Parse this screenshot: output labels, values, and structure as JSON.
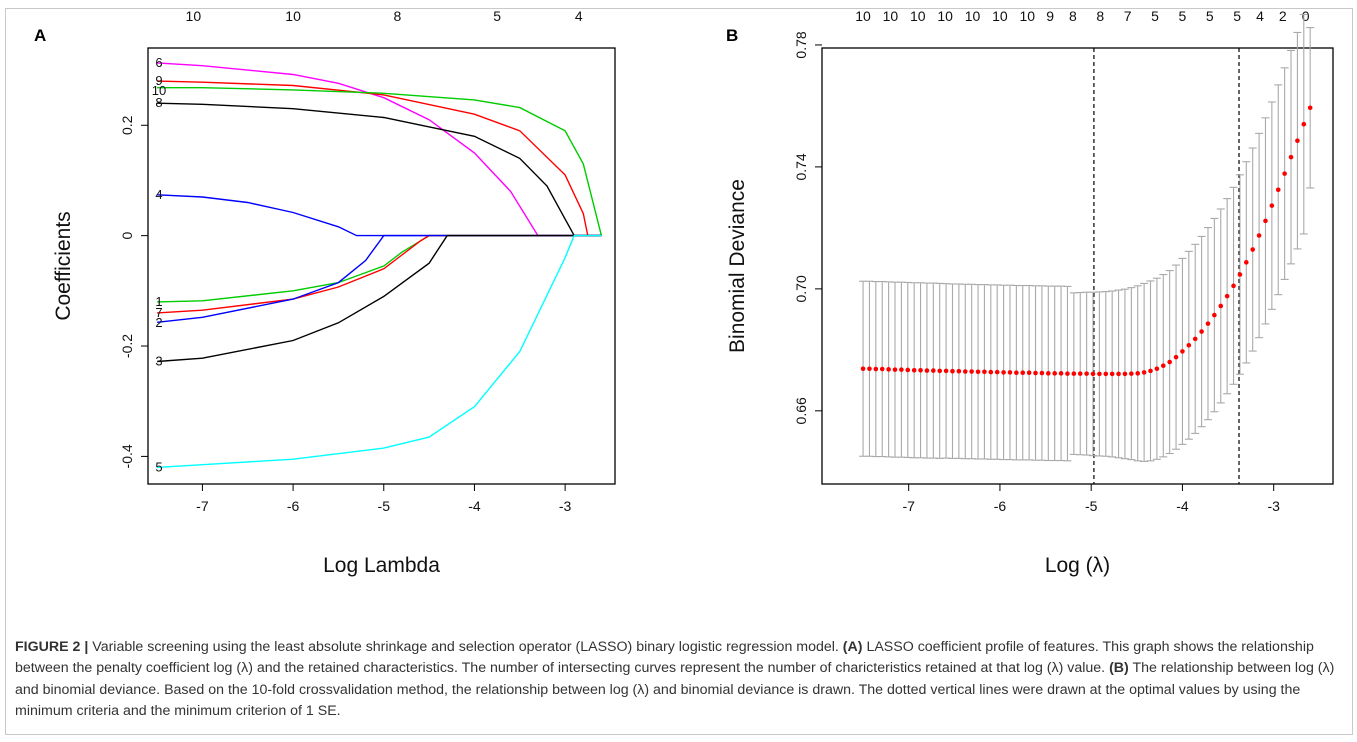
{
  "caption": {
    "label": "FIGURE 2 |",
    "parts": [
      {
        "t": " Variable screening using the least absolute shrinkage and selection operator (LASSO) binary logistic regression model. ",
        "b": false
      },
      {
        "t": "(A)",
        "b": true
      },
      {
        "t": " LASSO coefficient profile of features. This graph shows the relationship between the penalty coefficient log (λ) and the retained characteristics. The number of intersecting curves represent the number of charicteristics retained at that log (λ) value. ",
        "b": false
      },
      {
        "t": "(B)",
        "b": true
      },
      {
        "t": " The relationship between log (λ) and binomial deviance. Based on the 10-fold crossvalidation method, the relationship between log (λ) and binomial deviance is drawn. The dotted vertical lines were drawn at the optimal values by using the minimum criteria and the minimum criterion of 1 SE.",
        "b": false
      }
    ]
  },
  "chart_data": [
    {
      "panel": "A",
      "type": "line",
      "xlabel": "Log Lambda",
      "ylabel": "Coefficients",
      "xlim": [
        -7.6,
        -2.45
      ],
      "ylim": [
        -0.45,
        0.34
      ],
      "x_ticks": [
        -7,
        -6,
        -5,
        -4,
        -3
      ],
      "y_ticks": [
        -0.4,
        -0.2,
        0,
        0.2
      ],
      "y_tick_labels": [
        "-0.4",
        "-0.2",
        "0",
        "0.2"
      ],
      "top_axis": {
        "x": [
          -7.1,
          -6.0,
          -4.85,
          -3.75,
          -2.85
        ],
        "labels": [
          "10",
          "10",
          "8",
          "5",
          "4"
        ]
      },
      "series": [
        {
          "name": "6",
          "color": "#ff00ff",
          "x": [
            -7.5,
            -7.0,
            -6.0,
            -5.5,
            -5.0,
            -4.5,
            -4.0,
            -3.6,
            -3.3,
            -3.3,
            -2.6
          ],
          "y": [
            0.313,
            0.308,
            0.292,
            0.276,
            0.25,
            0.21,
            0.15,
            0.08,
            0.0,
            0.0,
            0.0
          ]
        },
        {
          "name": "9",
          "color": "#ff0000",
          "x": [
            -7.5,
            -7.0,
            -6.0,
            -5.0,
            -4.0,
            -3.5,
            -3.0,
            -2.8,
            -2.75,
            -2.6
          ],
          "y": [
            0.28,
            0.278,
            0.272,
            0.255,
            0.22,
            0.19,
            0.11,
            0.04,
            0.0,
            0.0
          ]
        },
        {
          "name": "10",
          "color": "#00cc00",
          "x": [
            -7.5,
            -7.0,
            -6.0,
            -5.0,
            -4.0,
            -3.5,
            -3.0,
            -2.8,
            -2.6
          ],
          "y": [
            0.268,
            0.268,
            0.264,
            0.258,
            0.246,
            0.232,
            0.19,
            0.13,
            0.0
          ]
        },
        {
          "name": "8",
          "color": "#000000",
          "x": [
            -7.5,
            -7.0,
            -6.0,
            -5.0,
            -4.0,
            -3.5,
            -3.2,
            -3.0,
            -2.9,
            -2.6
          ],
          "y": [
            0.24,
            0.238,
            0.23,
            0.214,
            0.18,
            0.14,
            0.09,
            0.03,
            0.0,
            0.0
          ]
        },
        {
          "name": "4",
          "color": "#0000ff",
          "x": [
            -7.5,
            -7.0,
            -6.5,
            -6.0,
            -5.5,
            -5.3,
            -2.6
          ],
          "y": [
            0.074,
            0.07,
            0.06,
            0.042,
            0.016,
            0.0,
            0.0
          ]
        },
        {
          "name": "1",
          "color": "#00cc00",
          "x": [
            -7.5,
            -7.0,
            -6.0,
            -5.5,
            -5.0,
            -4.8,
            -4.6,
            -4.5,
            -2.6
          ],
          "y": [
            -0.12,
            -0.118,
            -0.1,
            -0.085,
            -0.055,
            -0.03,
            -0.01,
            0.0,
            0.0
          ]
        },
        {
          "name": "7",
          "color": "#ff0000",
          "x": [
            -7.5,
            -7.0,
            -6.0,
            -5.5,
            -5.0,
            -4.8,
            -4.6,
            -4.5,
            -2.6
          ],
          "y": [
            -0.14,
            -0.135,
            -0.115,
            -0.093,
            -0.06,
            -0.035,
            -0.01,
            0.0,
            0.0
          ]
        },
        {
          "name": "2",
          "color": "#0000ff",
          "x": [
            -7.5,
            -7.0,
            -6.0,
            -5.5,
            -5.2,
            -5.0,
            -2.6
          ],
          "y": [
            -0.157,
            -0.148,
            -0.115,
            -0.085,
            -0.045,
            0.0,
            0.0
          ]
        },
        {
          "name": "3",
          "color": "#000000",
          "x": [
            -7.5,
            -7.0,
            -6.0,
            -5.5,
            -5.0,
            -4.5,
            -4.3,
            -2.6
          ],
          "y": [
            -0.228,
            -0.222,
            -0.19,
            -0.158,
            -0.11,
            -0.05,
            0.0,
            0.0
          ]
        },
        {
          "name": "5",
          "color": "#00ffff",
          "x": [
            -7.5,
            -7.0,
            -6.0,
            -5.0,
            -4.5,
            -4.0,
            -3.5,
            -3.0,
            -2.9,
            -2.6
          ],
          "y": [
            -0.42,
            -0.415,
            -0.405,
            -0.385,
            -0.365,
            -0.31,
            -0.21,
            -0.04,
            0.0,
            0.0
          ]
        }
      ]
    },
    {
      "panel": "B",
      "type": "scatter",
      "xlabel": "Log (λ)",
      "ylabel": "Binomial Deviance",
      "xlim": [
        -7.95,
        -2.35
      ],
      "ylim": [
        0.636,
        0.779
      ],
      "x_ticks": [
        -7,
        -6,
        -5,
        -4,
        -3
      ],
      "y_ticks": [
        0.66,
        0.7,
        0.74,
        0.78
      ],
      "y_tick_labels": [
        "0.66",
        "0.70",
        "0.74",
        "0.78"
      ],
      "top_axis": {
        "x": [
          -7.5,
          -7.2,
          -6.9,
          -6.6,
          -6.3,
          -6.0,
          -5.7,
          -5.45,
          -5.2,
          -4.9,
          -4.6,
          -4.3,
          -4.0,
          -3.7,
          -3.4,
          -3.15,
          -2.9,
          -2.65
        ],
        "labels": [
          "10",
          "10",
          "10",
          "10",
          "10",
          "10",
          "10",
          "9",
          "8",
          "8",
          "7",
          "5",
          "5",
          "5",
          "5",
          "4",
          "2",
          "0"
        ]
      },
      "vlines": [
        -4.97,
        -3.38
      ],
      "points": {
        "color": "#ff0000",
        "x": [
          -7.5,
          -7.43,
          -7.36,
          -7.29,
          -7.22,
          -7.15,
          -7.08,
          -7.01,
          -6.94,
          -6.87,
          -6.8,
          -6.73,
          -6.66,
          -6.59,
          -6.52,
          -6.45,
          -6.38,
          -6.31,
          -6.24,
          -6.17,
          -6.1,
          -6.03,
          -5.96,
          -5.89,
          -5.82,
          -5.75,
          -5.68,
          -5.61,
          -5.54,
          -5.47,
          -5.4,
          -5.33,
          -5.26,
          -5.19,
          -5.12,
          -5.05,
          -4.98,
          -4.91,
          -4.84,
          -4.77,
          -4.7,
          -4.63,
          -4.56,
          -4.49,
          -4.42,
          -4.35,
          -4.28,
          -4.21,
          -4.14,
          -4.07,
          -4.0,
          -3.93,
          -3.86,
          -3.79,
          -3.72,
          -3.65,
          -3.58,
          -3.51,
          -3.44,
          -3.37,
          -3.3,
          -3.23,
          -3.16,
          -3.09,
          -3.02,
          -2.95,
          -2.88,
          -2.81,
          -2.74,
          -2.67,
          -2.6
        ],
        "y": [
          0.6738,
          0.6738,
          0.6737,
          0.6737,
          0.6736,
          0.6735,
          0.6735,
          0.6734,
          0.6733,
          0.6733,
          0.6732,
          0.6732,
          0.6731,
          0.6731,
          0.673,
          0.673,
          0.6729,
          0.6729,
          0.6728,
          0.6728,
          0.6727,
          0.6727,
          0.6726,
          0.6726,
          0.6725,
          0.6725,
          0.6725,
          0.6724,
          0.6724,
          0.6723,
          0.6723,
          0.6723,
          0.6722,
          0.6722,
          0.6722,
          0.6722,
          0.6721,
          0.6721,
          0.6721,
          0.6721,
          0.6721,
          0.6721,
          0.6722,
          0.6723,
          0.6726,
          0.6731,
          0.6738,
          0.6748,
          0.676,
          0.6776,
          0.6795,
          0.6815,
          0.6836,
          0.686,
          0.6886,
          0.6914,
          0.6944,
          0.6976,
          0.701,
          0.7047,
          0.7087,
          0.7129,
          0.7175,
          0.7223,
          0.7273,
          0.7325,
          0.7378,
          0.7432,
          0.7486,
          0.754,
          0.7594
        ],
        "se": [
          0.0287,
          0.0287,
          0.0287,
          0.0287,
          0.0287,
          0.0287,
          0.0287,
          0.0287,
          0.0287,
          0.0287,
          0.0287,
          0.0287,
          0.0287,
          0.0286,
          0.0286,
          0.0286,
          0.0286,
          0.0286,
          0.0286,
          0.0286,
          0.0286,
          0.0286,
          0.0286,
          0.0286,
          0.0286,
          0.0286,
          0.0286,
          0.0286,
          0.0286,
          0.0286,
          0.0286,
          0.0286,
          0.0286,
          0.0265,
          0.0266,
          0.0267,
          0.0268,
          0.0269,
          0.027,
          0.0272,
          0.0275,
          0.0278,
          0.0282,
          0.0287,
          0.0292,
          0.0295,
          0.0297,
          0.0299,
          0.03,
          0.0302,
          0.0305,
          0.0308,
          0.031,
          0.0312,
          0.0315,
          0.0317,
          0.0318,
          0.032,
          0.0323,
          0.0327,
          0.033,
          0.0333,
          0.0335,
          0.0338,
          0.034,
          0.0344,
          0.0347,
          0.035,
          0.0355,
          0.036,
          0.0263
        ]
      },
      "errorbar_color": "#a9a9a9"
    }
  ]
}
